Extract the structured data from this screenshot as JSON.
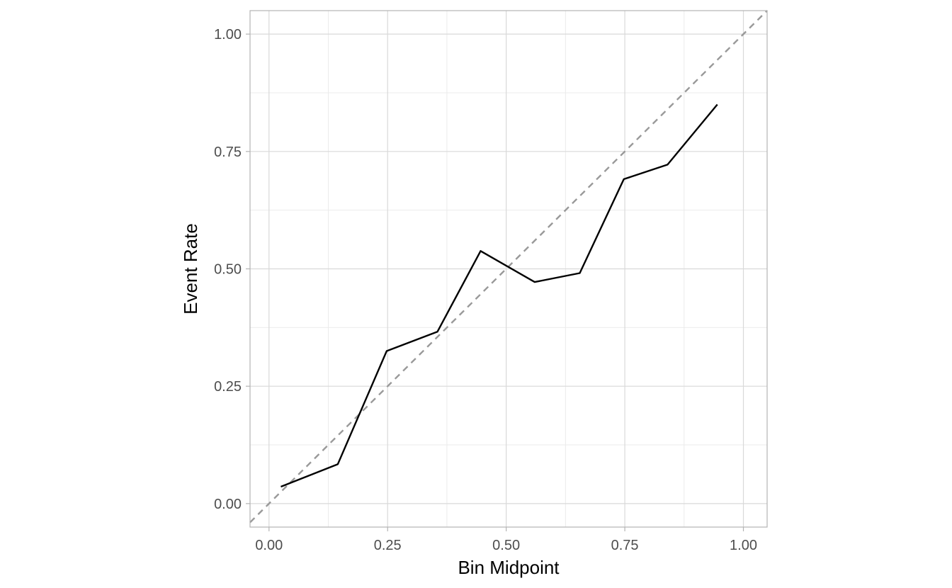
{
  "chart_data": {
    "type": "line",
    "title": "",
    "xlabel": "Bin Midpoint",
    "ylabel": "Event Rate",
    "xlim": [
      -0.04,
      1.05
    ],
    "ylim": [
      -0.05,
      1.05
    ],
    "x_ticks": [
      0.0,
      0.25,
      0.5,
      0.75,
      1.0
    ],
    "x_tick_labels": [
      "0.00",
      "0.25",
      "0.50",
      "0.75",
      "1.00"
    ],
    "y_ticks": [
      0.0,
      0.25,
      0.5,
      0.75,
      1.0
    ],
    "y_tick_labels": [
      "0.00",
      "0.25",
      "0.50",
      "0.75",
      "1.00"
    ],
    "minor_ticks": [
      0.125,
      0.375,
      0.625,
      0.875
    ],
    "grid": true,
    "series": [
      {
        "style": "solid",
        "color": "#000000",
        "x": [
          0.025,
          0.145,
          0.248,
          0.355,
          0.446,
          0.56,
          0.655,
          0.748,
          0.84,
          0.945
        ],
        "y": [
          0.036,
          0.084,
          0.325,
          0.366,
          0.538,
          0.472,
          0.491,
          0.691,
          0.722,
          0.85
        ]
      }
    ],
    "reference_line": {
      "style": "dashed",
      "color": "#999999",
      "x": [
        -0.04,
        1.05
      ],
      "y": [
        -0.04,
        1.05
      ]
    },
    "panel_border_color": "#b3b3b3",
    "grid_major_color": "#d9d9d9",
    "grid_minor_color": "#ebebeb"
  }
}
